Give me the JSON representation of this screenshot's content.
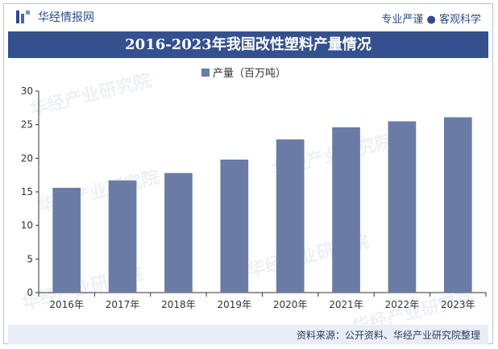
{
  "header": {
    "brand_name": "华经情报网",
    "slogan": "专业严谨 ● 客观科学"
  },
  "title_band": "2016-2023年我国改性塑料产量情况",
  "footer": {
    "source": "资料来源：公开资料、华经产业研究院整理"
  },
  "watermark_text": "华经产业研究院",
  "colors": {
    "bar": "#6a7ca6",
    "band": "#34508e",
    "brand": "#2f4b8a"
  },
  "chart_data": {
    "type": "bar",
    "title": "2016-2023年我国改性塑料产量情况",
    "categories": [
      "2016年",
      "2017年",
      "2018年",
      "2019年",
      "2020年",
      "2021年",
      "2022年",
      "2023年"
    ],
    "series": [
      {
        "name": "产量（百万吨）",
        "values": [
          15.6,
          16.7,
          17.8,
          19.8,
          22.8,
          24.6,
          25.5,
          26.1
        ]
      }
    ],
    "ylim": [
      0,
      30
    ],
    "yticks": [
      0,
      5,
      10,
      15,
      20,
      25,
      30
    ],
    "legend": "top-center",
    "grid": false
  }
}
